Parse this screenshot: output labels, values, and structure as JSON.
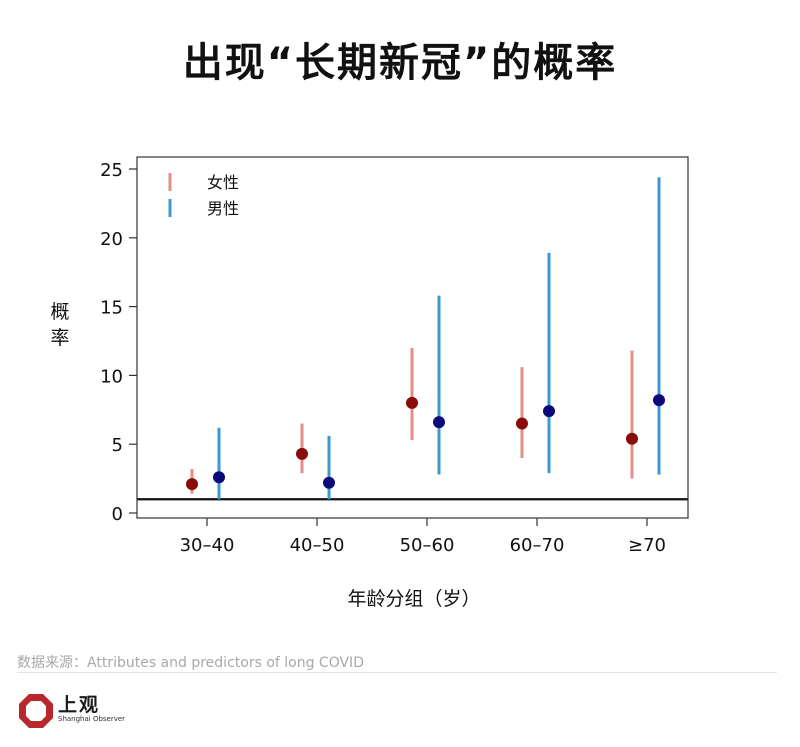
{
  "page": {
    "title": "出现“长期新冠”的概率"
  },
  "footer": {
    "source": "数据来源：Attributes and predictors of long COVID",
    "brand_cn": "上观",
    "brand_en": "Shanghai Observer",
    "brand_color": "#b8272c"
  },
  "chart_data": {
    "type": "scatter",
    "title": "出现“长期新冠”的概率",
    "xlabel": "年龄分组（岁）",
    "ylabel": "概率",
    "categories": [
      "30–40",
      "40–50",
      "50–60",
      "60–70",
      "≥70"
    ],
    "ylim": [
      0,
      25
    ],
    "yticks": [
      0,
      5,
      10,
      15,
      20,
      25
    ],
    "reference_line": 1,
    "legend_position": "top-left",
    "series": [
      {
        "name": "女性",
        "bar_color": "#e38e86",
        "point_color": "#8b0a0a",
        "values": [
          2.1,
          4.3,
          8.0,
          6.5,
          5.4
        ],
        "lower": [
          1.4,
          2.9,
          5.3,
          4.0,
          2.5
        ],
        "upper": [
          3.2,
          6.5,
          12.0,
          10.6,
          11.8
        ]
      },
      {
        "name": "男性",
        "bar_color": "#3c99d0",
        "point_color": "#0a0a7a",
        "values": [
          2.6,
          2.2,
          6.6,
          7.4,
          8.2
        ],
        "lower": [
          1.0,
          1.0,
          2.8,
          2.9,
          2.8
        ],
        "upper": [
          6.2,
          5.6,
          15.8,
          18.9,
          24.4
        ]
      }
    ]
  }
}
